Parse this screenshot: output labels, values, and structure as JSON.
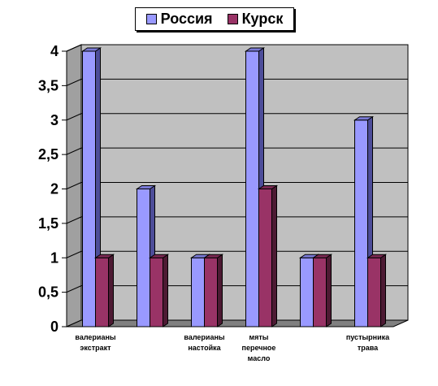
{
  "legend": {
    "series_1": "Россия",
    "series_2": "Курск"
  },
  "chart_data": {
    "type": "bar",
    "categories": [
      [
        "валерианы",
        "экстракт"
      ],
      [],
      [
        "валерианы",
        "настойка"
      ],
      [
        "мяты",
        "перечное",
        "масло"
      ],
      [],
      [
        "пустырника",
        "трава"
      ]
    ],
    "series": [
      {
        "name": "Россия",
        "values": [
          4,
          2,
          1,
          4,
          1,
          3
        ],
        "color": "#9999ff",
        "side_color": "#4d4d99",
        "top_color": "#7a7ad6"
      },
      {
        "name": "Курск",
        "values": [
          1,
          1,
          1,
          2,
          1,
          1
        ],
        "color": "#993366",
        "side_color": "#4d1a33",
        "top_color": "#7a2952"
      }
    ],
    "yticks": [
      "0",
      "0,5",
      "1",
      "1,5",
      "2",
      "2,5",
      "3",
      "3,5",
      "4"
    ],
    "ylim": [
      0,
      4
    ],
    "grid": true,
    "legend_position": "top",
    "wall_color": "#c0c0c0"
  }
}
